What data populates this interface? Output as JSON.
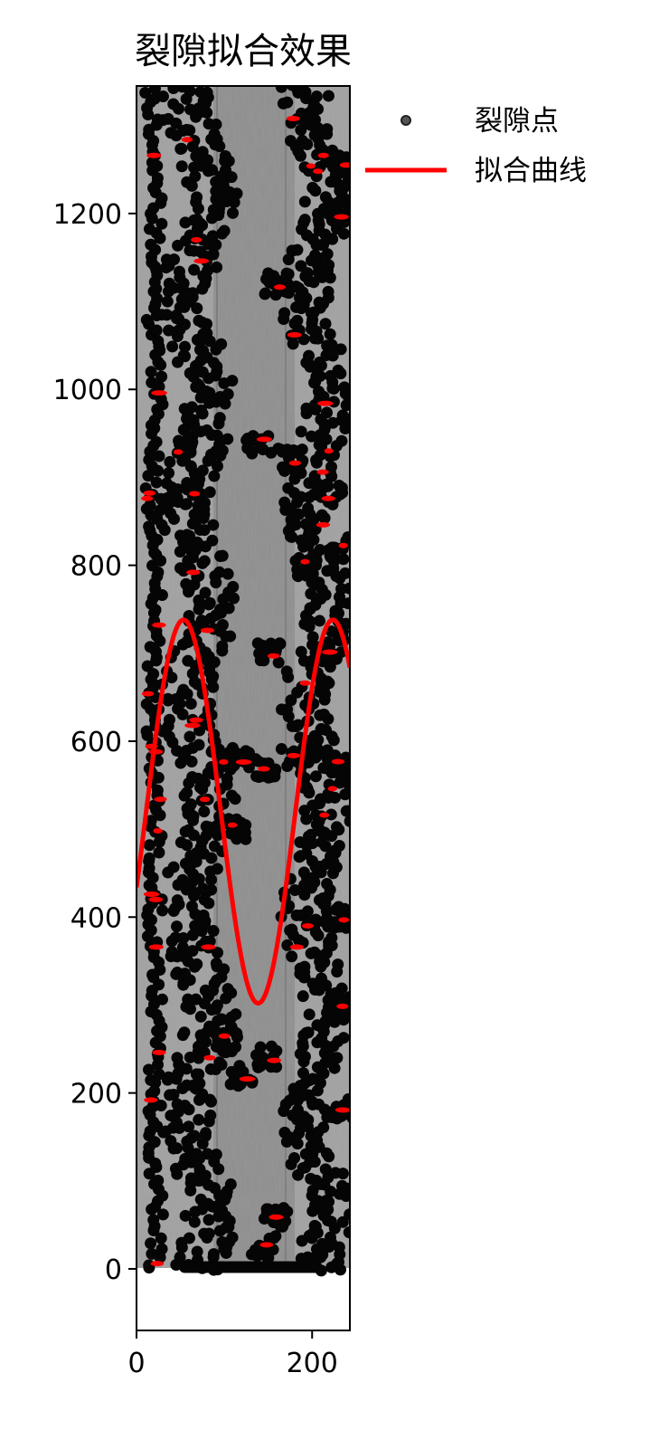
{
  "chart_data": {
    "type": "scatter",
    "title": "裂隙拟合效果",
    "xlim": [
      0,
      243
    ],
    "ylim": [
      -70,
      1345
    ],
    "x_ticks": [
      0,
      200
    ],
    "y_ticks": [
      0,
      200,
      400,
      600,
      800,
      1000,
      1200
    ],
    "x_tick_labels": [
      "0",
      "200"
    ],
    "y_tick_labels": [
      "0",
      "200",
      "400",
      "600",
      "800",
      "1000",
      "1200"
    ],
    "grid": false,
    "legend_position": "outside-top-right",
    "background_image": {
      "description_visible": "grayscale borehole image",
      "x_extent": [
        0,
        243
      ],
      "y_extent": [
        0,
        1345
      ]
    },
    "series": [
      {
        "name": "裂隙点",
        "kind": "scatter",
        "color": "#000000",
        "highlight_color": "#ff0000",
        "bands": [
          {
            "x_center": 20,
            "x_width": 14,
            "y_range": [
              0,
              1345
            ]
          },
          {
            "x_center": 70,
            "x_width": 60,
            "y_range": [
              0,
              1345
            ]
          },
          {
            "x_center": 205,
            "x_width": 55,
            "y_range": [
              0,
              1345
            ]
          }
        ],
        "clusters": [
          {
            "x": 120,
            "y": 580
          },
          {
            "x": 150,
            "y": 570
          },
          {
            "x": 180,
            "y": 580
          },
          {
            "x": 230,
            "y": 575
          },
          {
            "x": 100,
            "y": 260
          },
          {
            "x": 120,
            "y": 220
          },
          {
            "x": 150,
            "y": 240
          },
          {
            "x": 60,
            "y": 880
          },
          {
            "x": 50,
            "y": 930
          },
          {
            "x": 140,
            "y": 940
          },
          {
            "x": 175,
            "y": 920
          },
          {
            "x": 220,
            "y": 880
          },
          {
            "x": 230,
            "y": 820
          },
          {
            "x": 215,
            "y": 700
          },
          {
            "x": 160,
            "y": 1120
          },
          {
            "x": 100,
            "y": 580
          },
          {
            "x": 110,
            "y": 500
          },
          {
            "x": 160,
            "y": 60
          },
          {
            "x": 145,
            "y": 25
          },
          {
            "x": 235,
            "y": 1200
          },
          {
            "x": 235,
            "y": 1255
          },
          {
            "x": 230,
            "y": 400
          },
          {
            "x": 230,
            "y": 300
          },
          {
            "x": 235,
            "y": 180
          },
          {
            "x": 195,
            "y": 800
          },
          {
            "x": 150,
            "y": 700
          }
        ],
        "bottom_row": {
          "x_range": [
            55,
            205
          ],
          "y": 2
        }
      },
      {
        "name": "拟合曲线",
        "kind": "line",
        "color": "#ff0000",
        "function": "y = 520 + 218 * sin(2*pi*(x - 11) / 170)",
        "x_range": [
          0,
          243
        ],
        "peaks": [
          {
            "x": 53,
            "y": 738
          },
          {
            "x": 222,
            "y": 738
          }
        ],
        "trough": {
          "x": 136,
          "y": 302
        }
      }
    ]
  }
}
